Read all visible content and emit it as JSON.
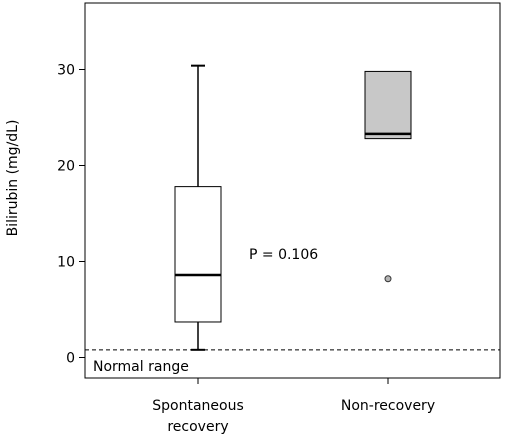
{
  "chart_data": {
    "type": "box",
    "ylabel": "Bilirubin (mg/dL)",
    "ylim": [
      -2,
      35.5
    ],
    "yticks": [
      0,
      10,
      20,
      30
    ],
    "categories": [
      "Spontaneous recovery",
      "Non-recovery"
    ],
    "category_labels": [
      [
        "Spontaneous",
        "recovery"
      ],
      [
        "Non-recovery"
      ]
    ],
    "boxes": [
      {
        "category": "Spontaneous recovery",
        "whisker_low": 0.8,
        "q1": 3.7,
        "median": 8.6,
        "q3": 17.8,
        "whisker_high": 30.4,
        "outliers": [],
        "fill": "#ffffff"
      },
      {
        "category": "Non-recovery",
        "whisker_low": 22.8,
        "q1": 22.8,
        "median": 23.3,
        "q3": 29.8,
        "whisker_high": 29.8,
        "outliers": [
          8.2
        ],
        "fill": "#c8c8c8"
      }
    ],
    "reference_line": {
      "y": 0.8,
      "style": "dashed",
      "label": "Normal range"
    },
    "annotations": [
      {
        "text": "P = 0.106"
      }
    ],
    "grid": false,
    "legend": "none"
  }
}
